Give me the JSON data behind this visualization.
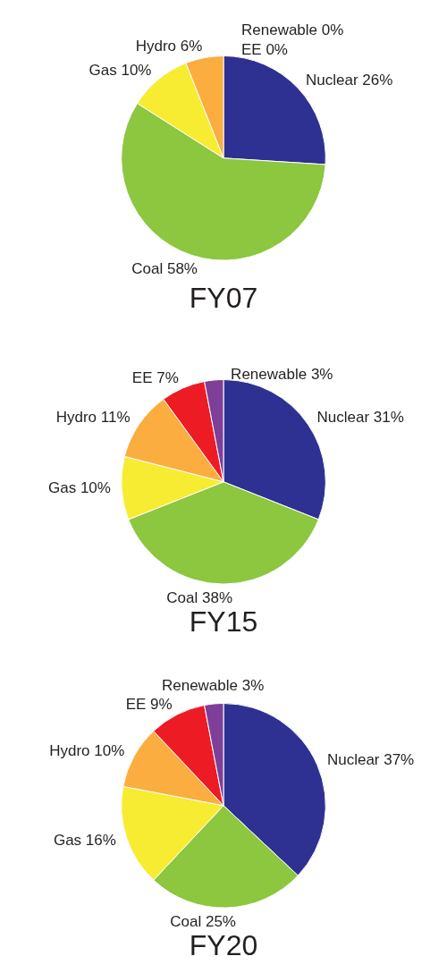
{
  "chart_data": [
    {
      "type": "pie",
      "title": "FY07",
      "categories": [
        "Nuclear",
        "Coal",
        "Gas",
        "Hydro",
        "EE",
        "Renewable"
      ],
      "values": [
        26,
        58,
        10,
        6,
        0,
        0
      ],
      "value_labels": [
        "26%",
        "58%",
        "10%",
        "6%",
        "0%",
        "0%"
      ],
      "colors": [
        "#2e3192",
        "#8dc63f",
        "#f7ec31",
        "#fbad3f",
        "#ed1c24",
        "#7f3f98"
      ],
      "legend": false
    },
    {
      "type": "pie",
      "title": "FY15",
      "categories": [
        "Nuclear",
        "Coal",
        "Gas",
        "Hydro",
        "EE",
        "Renewable"
      ],
      "values": [
        31,
        38,
        10,
        11,
        7,
        3
      ],
      "value_labels": [
        "31%",
        "38%",
        "10%",
        "11%",
        "7%",
        "3%"
      ],
      "colors": [
        "#2e3192",
        "#8dc63f",
        "#f7ec31",
        "#fbad3f",
        "#ed1c24",
        "#7f3f98"
      ],
      "legend": false
    },
    {
      "type": "pie",
      "title": "FY20",
      "categories": [
        "Nuclear",
        "Coal",
        "Gas",
        "Hydro",
        "EE",
        "Renewable"
      ],
      "values": [
        37,
        25,
        16,
        10,
        9,
        3
      ],
      "value_labels": [
        "37%",
        "25%",
        "16%",
        "10%",
        "9%",
        "3%"
      ],
      "colors": [
        "#2e3192",
        "#8dc63f",
        "#f7ec31",
        "#fbad3f",
        "#ed1c24",
        "#7f3f98"
      ],
      "legend": false
    }
  ]
}
